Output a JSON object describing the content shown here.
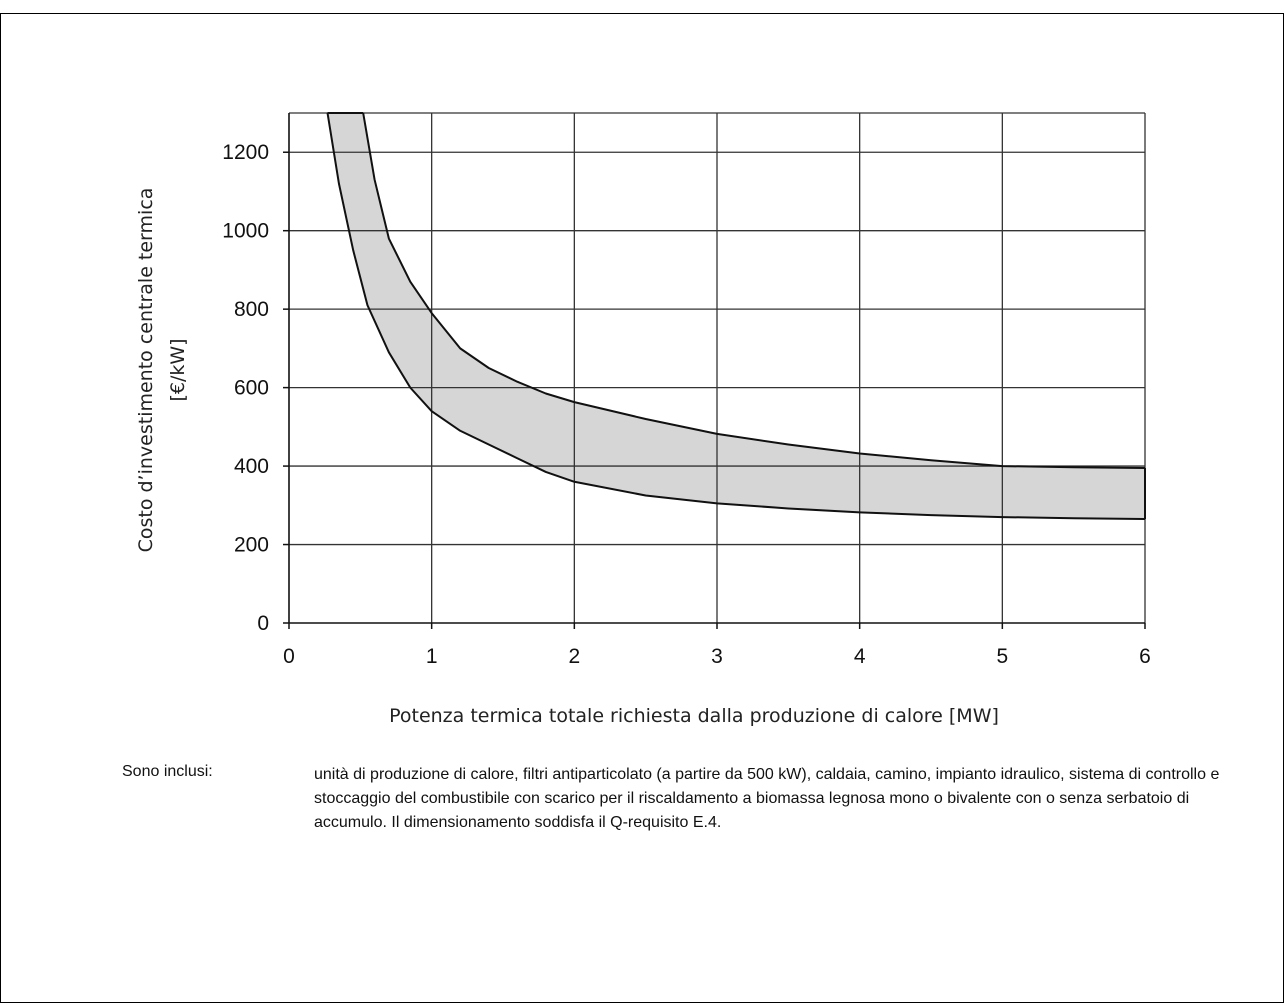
{
  "chart_data": {
    "type": "area",
    "xlabel": "Potenza termica totale richiesta dalla produzione  di calore [MW]",
    "ylabel": [
      "Costo d’investimento centrale termica",
      "[€/kW]"
    ],
    "xlim": [
      0,
      6
    ],
    "ylim": [
      0,
      1300
    ],
    "x_ticks": [
      0,
      1,
      2,
      3,
      4,
      5,
      6
    ],
    "y_ticks": [
      0,
      200,
      400,
      600,
      800,
      1000,
      1200
    ],
    "grid": true,
    "band_color": "#d6d6d6",
    "series": [
      {
        "x": [
          0.27,
          0.35,
          0.45,
          0.55,
          0.7,
          0.85,
          1.0,
          1.2,
          1.4,
          1.6,
          1.8,
          2.0,
          2.5,
          3.0,
          3.5,
          4.0,
          4.5,
          5.0,
          5.5,
          6.0
        ],
        "values": [
          1300,
          1120,
          950,
          810,
          690,
          600,
          540,
          490,
          455,
          420,
          385,
          360,
          325,
          305,
          292,
          282,
          275,
          270,
          267,
          265
        ]
      },
      {
        "x": [
          0.52,
          0.6,
          0.7,
          0.85,
          1.0,
          1.2,
          1.4,
          1.6,
          1.8,
          2.0,
          2.5,
          3.0,
          3.5,
          4.0,
          4.5,
          5.0,
          5.5,
          6.0
        ],
        "values": [
          1300,
          1130,
          980,
          870,
          790,
          700,
          650,
          615,
          585,
          563,
          520,
          482,
          455,
          432,
          415,
          400,
          397,
          395
        ]
      }
    ]
  },
  "notes": {
    "label": "Sono inclusi:",
    "text": "unità di produzione di calore, filtri antiparticolato (a partire da 500 kW), caldaia, camino, impianto idraulico, sistema di controllo e stoccaggio del combustibile con scarico per il riscaldamento a biomassa legnosa mono o bivalente con o senza serbatoio di accumulo. Il dimensionamento soddisfa il Q-requisito E.4."
  }
}
